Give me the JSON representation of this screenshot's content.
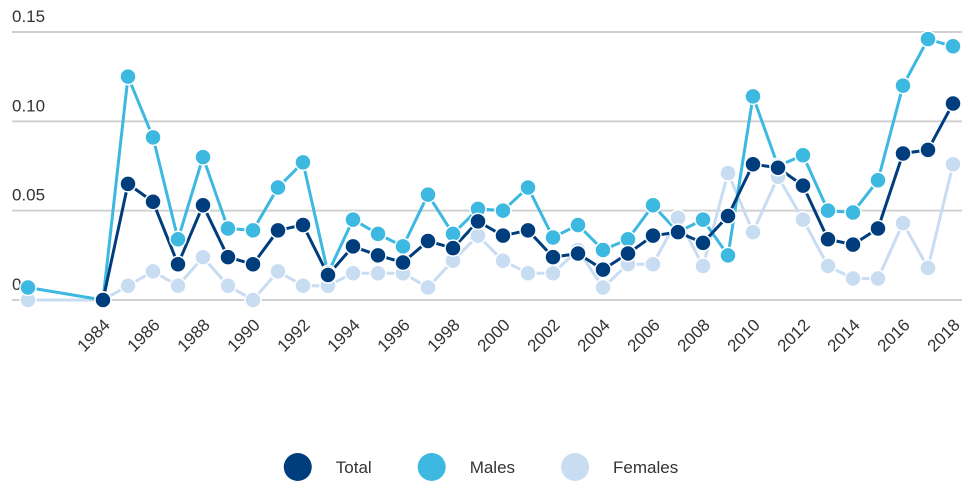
{
  "chart_data": {
    "type": "line",
    "x": [
      1981,
      1984,
      1985,
      1986,
      1987,
      1988,
      1989,
      1990,
      1991,
      1992,
      1993,
      1994,
      1995,
      1996,
      1997,
      1998,
      1999,
      2000,
      2001,
      2002,
      2003,
      2004,
      2005,
      2006,
      2007,
      2008,
      2009,
      2010,
      2011,
      2012,
      2013,
      2014,
      2015,
      2016,
      2017,
      2018
    ],
    "xlim": [
      1981,
      2018
    ],
    "xticks": [
      1984,
      1986,
      1988,
      1990,
      1992,
      1994,
      1996,
      1998,
      2000,
      2002,
      2004,
      2006,
      2008,
      2010,
      2012,
      2014,
      2016,
      2018
    ],
    "ylim": [
      0,
      0.15
    ],
    "yticks": [
      0,
      0.05,
      {
        "value": 0.1,
        "label": "0.10"
      },
      0.15
    ],
    "grid": true,
    "legend": "bottom",
    "series": [
      {
        "name": "Total",
        "color": "#003d7c",
        "values": [
          null,
          0,
          0.065,
          0.055,
          0.02,
          0.053,
          0.024,
          0.02,
          0.039,
          0.042,
          0.014,
          0.03,
          0.025,
          0.021,
          0.033,
          0.029,
          0.044,
          0.036,
          0.039,
          0.024,
          0.026,
          0.017,
          0.026,
          0.036,
          0.038,
          0.032,
          0.047,
          0.076,
          0.074,
          0.064,
          0.034,
          0.031,
          0.04,
          0.082,
          0.084,
          0.11
        ]
      },
      {
        "name": "Males",
        "color": "#3db8e0",
        "values": [
          0.007,
          0,
          0.125,
          0.091,
          0.034,
          0.08,
          0.04,
          0.039,
          0.063,
          0.077,
          0.015,
          0.045,
          0.037,
          0.03,
          0.059,
          0.037,
          0.051,
          0.05,
          0.063,
          0.035,
          0.042,
          0.028,
          0.034,
          0.053,
          0.038,
          0.045,
          0.025,
          0.114,
          0.075,
          0.081,
          0.05,
          0.049,
          0.067,
          0.12,
          0.146,
          0.142
        ]
      },
      {
        "name": "Females",
        "color": "#c8dcf2",
        "values": [
          0,
          0,
          0.008,
          0.016,
          0.008,
          0.024,
          0.008,
          0,
          0.016,
          0.008,
          0.008,
          0.015,
          0.015,
          0.015,
          0.007,
          0.022,
          0.036,
          0.022,
          0.015,
          0.015,
          0.028,
          0.007,
          0.02,
          0.02,
          0.046,
          0.019,
          0.071,
          0.038,
          0.069,
          0.045,
          0.019,
          0.012,
          0.012,
          0.043,
          0.018,
          0.076
        ]
      }
    ]
  }
}
